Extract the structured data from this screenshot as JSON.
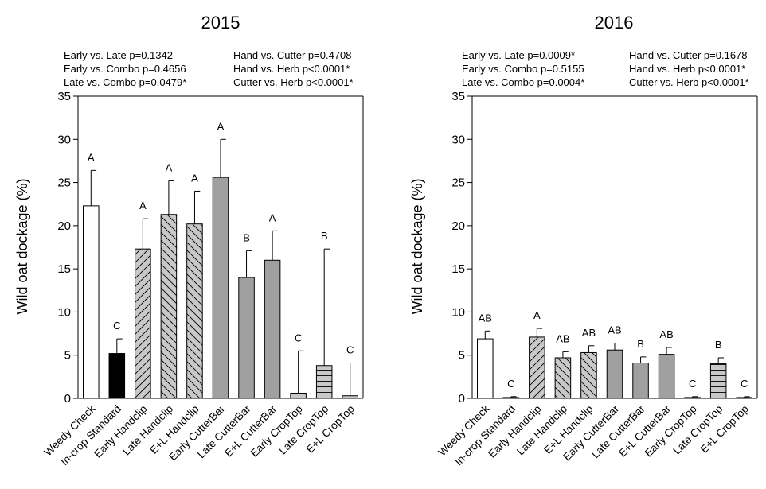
{
  "chart_data": [
    {
      "type": "bar",
      "title": "2015",
      "ylabel": "Wild oat dockage (%)",
      "ylim": [
        0,
        35
      ],
      "yticks": [
        0,
        5,
        10,
        15,
        20,
        25,
        30,
        35
      ],
      "grid": false,
      "comparisons_left": [
        "Early vs. Late p=0.1342",
        "Early vs. Combo p=0.4656",
        "Late vs. Combo p=0.0479*"
      ],
      "comparisons_right": [
        "Hand vs. Cutter p=0.4708",
        "Hand vs. Herb p<0.0001*",
        "Cutter vs. Herb p<0.0001*"
      ],
      "categories": [
        "Weedy Check",
        "In-crop Standard",
        "Early Handclip",
        "Late Handclip",
        "E+L Handclip",
        "Early CutterBar",
        "Late CutterBar",
        "E+L CutterBar",
        "Early CropTop",
        "Late CropTop",
        "E+L CropTop"
      ],
      "values": [
        22.3,
        5.2,
        17.3,
        21.3,
        20.2,
        25.6,
        14.0,
        16.0,
        0.6,
        3.8,
        0.3
      ],
      "error_upper": [
        26.4,
        6.9,
        20.8,
        25.2,
        24.0,
        30.0,
        17.1,
        19.4,
        5.5,
        17.3,
        4.1
      ],
      "letters": [
        "A",
        "C",
        "A",
        "A",
        "A",
        "A",
        "B",
        "A",
        "C",
        "B",
        "C"
      ]
    },
    {
      "type": "bar",
      "title": "2016",
      "ylabel": "Wild oat dockage (%)",
      "ylim": [
        0,
        35
      ],
      "yticks": [
        0,
        5,
        10,
        15,
        20,
        25,
        30,
        35
      ],
      "grid": false,
      "comparisons_left": [
        "Early vs. Late p=0.0009*",
        "Early vs. Combo p=0.5155",
        "Late vs. Combo p=0.0004*"
      ],
      "comparisons_right": [
        "Hand vs. Cutter p=0.1678",
        "Hand vs. Herb p<0.0001*",
        "Cutter vs. Herb p<0.0001*"
      ],
      "categories": [
        "Weedy Check",
        "In-crop Standard",
        "Early Handclip",
        "Late Handclip",
        "E+L Handclip",
        "Early CutterBar",
        "Late CutterBar",
        "E+L CutterBar",
        "Early CropTop",
        "Late CropTop",
        "E+L CropTop"
      ],
      "values": [
        6.9,
        0.1,
        7.1,
        4.7,
        5.3,
        5.6,
        4.1,
        5.1,
        0.1,
        4.0,
        0.1
      ],
      "error_upper": [
        7.8,
        0.2,
        8.1,
        5.4,
        6.1,
        6.4,
        4.8,
        5.9,
        0.2,
        4.7,
        0.2
      ],
      "letters": [
        "AB",
        "C",
        "A",
        "AB",
        "AB",
        "AB",
        "B",
        "AB",
        "C",
        "B",
        "C"
      ]
    }
  ],
  "colors": {
    "white": "#ffffff",
    "black": "#000000",
    "hatch_fill": "#c8c8c8",
    "gray": "#a0a0a0",
    "croptop_fill": "#c8c8c8"
  }
}
